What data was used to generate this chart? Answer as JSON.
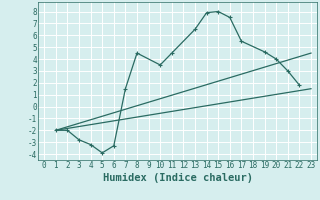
{
  "xlabel": "Humidex (Indice chaleur)",
  "xlim": [
    -0.5,
    23.5
  ],
  "ylim": [
    -4.5,
    8.8
  ],
  "xticks": [
    0,
    1,
    2,
    3,
    4,
    5,
    6,
    7,
    8,
    9,
    10,
    11,
    12,
    13,
    14,
    15,
    16,
    17,
    18,
    19,
    20,
    21,
    22,
    23
  ],
  "yticks": [
    -4,
    -3,
    -2,
    -1,
    0,
    1,
    2,
    3,
    4,
    5,
    6,
    7,
    8
  ],
  "background_color": "#d6eeee",
  "grid_color": "#ffffff",
  "line_color": "#2a6b62",
  "line1_x": [
    1,
    2,
    3,
    4,
    5,
    6,
    7,
    8,
    10,
    11,
    13,
    14,
    15,
    16,
    17,
    19,
    20,
    21,
    22
  ],
  "line1_y": [
    -2,
    -2,
    -2.8,
    -3.2,
    -3.9,
    -3.3,
    1.5,
    4.5,
    3.5,
    4.5,
    6.5,
    7.9,
    8.0,
    7.5,
    5.5,
    4.6,
    4.0,
    3.0,
    1.8
  ],
  "line2_x": [
    1,
    23
  ],
  "line2_y": [
    -2,
    1.5
  ],
  "line3_x": [
    1,
    23
  ],
  "line3_y": [
    -2,
    4.5
  ],
  "tick_fontsize": 5.5,
  "xlabel_fontsize": 7.5
}
